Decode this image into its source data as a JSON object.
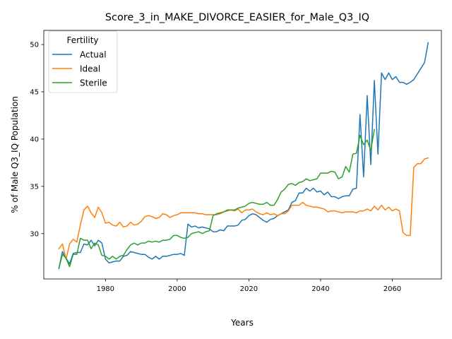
{
  "chart_data": {
    "type": "line",
    "title": "Score_3_in_MAKE_DIVORCE_EASIER_for_Male_Q3_IQ",
    "xlabel": "Years",
    "ylabel": "% of Male Q3_IQ Population",
    "xlim": [
      1962.8,
      2073.7
    ],
    "ylim": [
      25.2,
      51.5
    ],
    "xticks": [
      1980,
      2000,
      2020,
      2040,
      2060
    ],
    "yticks": [
      30,
      35,
      40,
      45,
      50
    ],
    "grid": false,
    "legend": {
      "title": "Fertility",
      "placement": "top-left"
    },
    "series": [
      {
        "name": "Actual",
        "color": "#1f77b4",
        "points": [
          [
            1967,
            26.3
          ],
          [
            1968,
            28.1
          ],
          [
            1969,
            27.4
          ],
          [
            1970,
            26.8
          ],
          [
            1971,
            27.9
          ],
          [
            1972,
            28.0
          ],
          [
            1973,
            28.0
          ],
          [
            1974,
            28.9
          ],
          [
            1975,
            28.8
          ],
          [
            1976,
            29.3
          ],
          [
            1977,
            28.7
          ],
          [
            1978,
            29.3
          ],
          [
            1979,
            29.0
          ],
          [
            1980,
            27.3
          ],
          [
            1981,
            26.9
          ],
          [
            1982,
            27.0
          ],
          [
            1983,
            27.1
          ],
          [
            1984,
            27.1
          ],
          [
            1985,
            27.6
          ],
          [
            1986,
            27.7
          ],
          [
            1987,
            28.1
          ],
          [
            1988,
            28.0
          ],
          [
            1989,
            27.9
          ],
          [
            1990,
            27.8
          ],
          [
            1991,
            27.8
          ],
          [
            1992,
            27.5
          ],
          [
            1993,
            27.3
          ],
          [
            1994,
            27.6
          ],
          [
            1995,
            27.3
          ],
          [
            1996,
            27.6
          ],
          [
            1997,
            27.6
          ],
          [
            1998,
            27.7
          ],
          [
            1999,
            27.8
          ],
          [
            2000,
            27.8
          ],
          [
            2001,
            27.9
          ],
          [
            2002,
            27.7
          ],
          [
            2003,
            31.0
          ],
          [
            2004,
            30.7
          ],
          [
            2005,
            30.8
          ],
          [
            2006,
            30.6
          ],
          [
            2007,
            30.7
          ],
          [
            2008,
            30.6
          ],
          [
            2009,
            30.5
          ],
          [
            2010,
            30.2
          ],
          [
            2011,
            30.2
          ],
          [
            2012,
            30.4
          ],
          [
            2013,
            30.3
          ],
          [
            2014,
            30.8
          ],
          [
            2015,
            30.8
          ],
          [
            2016,
            30.8
          ],
          [
            2017,
            30.9
          ],
          [
            2018,
            31.4
          ],
          [
            2019,
            31.5
          ],
          [
            2020,
            31.9
          ],
          [
            2021,
            32.1
          ],
          [
            2022,
            32.0
          ],
          [
            2023,
            31.7
          ],
          [
            2024,
            31.4
          ],
          [
            2025,
            31.2
          ],
          [
            2026,
            31.5
          ],
          [
            2027,
            31.6
          ],
          [
            2028,
            31.9
          ],
          [
            2029,
            32.1
          ],
          [
            2030,
            32.3
          ],
          [
            2031,
            32.5
          ],
          [
            2032,
            33.3
          ],
          [
            2033,
            33.5
          ],
          [
            2034,
            34.3
          ],
          [
            2035,
            34.3
          ],
          [
            2036,
            34.8
          ],
          [
            2037,
            34.5
          ],
          [
            2038,
            34.8
          ],
          [
            2039,
            34.4
          ],
          [
            2040,
            34.5
          ],
          [
            2041,
            34.1
          ],
          [
            2042,
            34.4
          ],
          [
            2043,
            33.9
          ],
          [
            2044,
            33.9
          ],
          [
            2045,
            33.7
          ],
          [
            2046,
            33.9
          ],
          [
            2047,
            34.0
          ],
          [
            2048,
            34.0
          ],
          [
            2049,
            34.7
          ],
          [
            2050,
            34.8
          ],
          [
            2051,
            42.6
          ],
          [
            2052,
            36.0
          ],
          [
            2053,
            44.6
          ],
          [
            2054,
            37.3
          ],
          [
            2055,
            46.2
          ],
          [
            2056,
            38.4
          ],
          [
            2057,
            47.0
          ],
          [
            2058,
            46.3
          ],
          [
            2059,
            47.0
          ],
          [
            2060,
            46.3
          ],
          [
            2061,
            46.6
          ],
          [
            2062,
            46.0
          ],
          [
            2063,
            46.0
          ],
          [
            2064,
            45.8
          ],
          [
            2065,
            46.0
          ],
          [
            2066,
            46.3
          ],
          [
            2067,
            46.9
          ],
          [
            2068,
            47.5
          ],
          [
            2069,
            48.1
          ],
          [
            2070,
            50.2
          ]
        ]
      },
      {
        "name": "Ideal",
        "color": "#ff7f0e",
        "points": [
          [
            1967,
            28.4
          ],
          [
            1968,
            28.9
          ],
          [
            1969,
            27.3
          ],
          [
            1970,
            28.9
          ],
          [
            1971,
            29.4
          ],
          [
            1972,
            29.1
          ],
          [
            1973,
            30.9
          ],
          [
            1974,
            32.5
          ],
          [
            1975,
            32.9
          ],
          [
            1976,
            32.2
          ],
          [
            1977,
            31.7
          ],
          [
            1978,
            32.8
          ],
          [
            1979,
            32.2
          ],
          [
            1980,
            31.1
          ],
          [
            1981,
            31.2
          ],
          [
            1982,
            30.9
          ],
          [
            1983,
            30.8
          ],
          [
            1984,
            31.2
          ],
          [
            1985,
            30.7
          ],
          [
            1986,
            30.8
          ],
          [
            1987,
            31.2
          ],
          [
            1988,
            30.9
          ],
          [
            1989,
            31.0
          ],
          [
            1990,
            31.3
          ],
          [
            1991,
            31.8
          ],
          [
            1992,
            31.9
          ],
          [
            1993,
            31.8
          ],
          [
            1994,
            31.6
          ],
          [
            1995,
            31.7
          ],
          [
            1996,
            32.1
          ],
          [
            1997,
            32.0
          ],
          [
            1998,
            31.7
          ],
          [
            1999,
            31.9
          ],
          [
            2000,
            32.0
          ],
          [
            2001,
            32.2
          ],
          [
            2002,
            32.2
          ],
          [
            2003,
            32.2
          ],
          [
            2004,
            32.2
          ],
          [
            2005,
            32.2
          ],
          [
            2006,
            32.1
          ],
          [
            2007,
            32.1
          ],
          [
            2008,
            32.0
          ],
          [
            2009,
            32.0
          ],
          [
            2010,
            32.0
          ],
          [
            2011,
            32.0
          ],
          [
            2012,
            32.1
          ],
          [
            2013,
            32.3
          ],
          [
            2014,
            32.4
          ],
          [
            2015,
            32.5
          ],
          [
            2016,
            32.4
          ],
          [
            2017,
            32.6
          ],
          [
            2018,
            32.2
          ],
          [
            2019,
            32.5
          ],
          [
            2020,
            32.5
          ],
          [
            2021,
            32.6
          ],
          [
            2022,
            32.3
          ],
          [
            2023,
            32.1
          ],
          [
            2024,
            32.0
          ],
          [
            2025,
            32.2
          ],
          [
            2026,
            32.0
          ],
          [
            2027,
            32.1
          ],
          [
            2028,
            31.9
          ],
          [
            2029,
            32.1
          ],
          [
            2030,
            32.1
          ],
          [
            2031,
            32.4
          ],
          [
            2032,
            33.0
          ],
          [
            2033,
            33.0
          ],
          [
            2034,
            33.0
          ],
          [
            2035,
            33.3
          ],
          [
            2036,
            33.0
          ],
          [
            2037,
            32.9
          ],
          [
            2038,
            32.8
          ],
          [
            2039,
            32.8
          ],
          [
            2040,
            32.7
          ],
          [
            2041,
            32.6
          ],
          [
            2042,
            32.3
          ],
          [
            2043,
            32.4
          ],
          [
            2044,
            32.4
          ],
          [
            2045,
            32.3
          ],
          [
            2046,
            32.2
          ],
          [
            2047,
            32.3
          ],
          [
            2048,
            32.3
          ],
          [
            2049,
            32.3
          ],
          [
            2050,
            32.2
          ],
          [
            2051,
            32.4
          ],
          [
            2052,
            32.4
          ],
          [
            2053,
            32.6
          ],
          [
            2054,
            32.4
          ],
          [
            2055,
            32.9
          ],
          [
            2056,
            32.5
          ],
          [
            2057,
            33.0
          ],
          [
            2058,
            32.5
          ],
          [
            2059,
            32.8
          ],
          [
            2060,
            32.4
          ],
          [
            2061,
            32.6
          ],
          [
            2062,
            32.4
          ],
          [
            2063,
            30.1
          ],
          [
            2064,
            29.8
          ],
          [
            2065,
            29.8
          ],
          [
            2066,
            37.0
          ],
          [
            2067,
            37.4
          ],
          [
            2068,
            37.4
          ],
          [
            2069,
            37.9
          ],
          [
            2070,
            38.0
          ]
        ]
      },
      {
        "name": "Sterile",
        "color": "#2ca02c",
        "points": [
          [
            1967,
            26.3
          ],
          [
            1968,
            27.8
          ],
          [
            1969,
            27.4
          ],
          [
            1970,
            26.5
          ],
          [
            1971,
            27.8
          ],
          [
            1972,
            27.8
          ],
          [
            1973,
            29.5
          ],
          [
            1974,
            29.3
          ],
          [
            1975,
            29.3
          ],
          [
            1976,
            28.4
          ],
          [
            1977,
            29.0
          ],
          [
            1978,
            28.8
          ],
          [
            1979,
            27.7
          ],
          [
            1980,
            27.6
          ],
          [
            1981,
            27.3
          ],
          [
            1982,
            27.6
          ],
          [
            1983,
            27.3
          ],
          [
            1984,
            27.6
          ],
          [
            1985,
            27.7
          ],
          [
            1986,
            28.3
          ],
          [
            1987,
            28.8
          ],
          [
            1988,
            29.0
          ],
          [
            1989,
            28.8
          ],
          [
            1990,
            29.0
          ],
          [
            1991,
            29.0
          ],
          [
            1992,
            29.2
          ],
          [
            1993,
            29.1
          ],
          [
            1994,
            29.2
          ],
          [
            1995,
            29.1
          ],
          [
            1996,
            29.3
          ],
          [
            1997,
            29.3
          ],
          [
            1998,
            29.4
          ],
          [
            1999,
            29.8
          ],
          [
            2000,
            29.8
          ],
          [
            2001,
            29.6
          ],
          [
            2002,
            29.5
          ],
          [
            2003,
            29.6
          ],
          [
            2004,
            30.0
          ],
          [
            2005,
            30.1
          ],
          [
            2006,
            30.2
          ],
          [
            2007,
            30.0
          ],
          [
            2008,
            30.2
          ],
          [
            2009,
            30.3
          ],
          [
            2010,
            31.9
          ],
          [
            2011,
            32.1
          ],
          [
            2012,
            32.2
          ],
          [
            2013,
            32.3
          ],
          [
            2014,
            32.5
          ],
          [
            2015,
            32.5
          ],
          [
            2016,
            32.5
          ],
          [
            2017,
            32.7
          ],
          [
            2018,
            32.8
          ],
          [
            2019,
            32.9
          ],
          [
            2020,
            33.2
          ],
          [
            2021,
            33.3
          ],
          [
            2022,
            33.2
          ],
          [
            2023,
            33.1
          ],
          [
            2024,
            33.1
          ],
          [
            2025,
            33.3
          ],
          [
            2026,
            33.0
          ],
          [
            2027,
            33.0
          ],
          [
            2028,
            33.6
          ],
          [
            2029,
            34.4
          ],
          [
            2030,
            34.7
          ],
          [
            2031,
            35.2
          ],
          [
            2032,
            35.3
          ],
          [
            2033,
            35.1
          ],
          [
            2034,
            35.4
          ],
          [
            2035,
            35.5
          ],
          [
            2036,
            35.8
          ],
          [
            2037,
            35.6
          ],
          [
            2038,
            35.7
          ],
          [
            2039,
            35.8
          ],
          [
            2040,
            36.4
          ],
          [
            2041,
            36.4
          ],
          [
            2042,
            36.4
          ],
          [
            2043,
            36.6
          ],
          [
            2044,
            36.5
          ],
          [
            2045,
            35.8
          ],
          [
            2046,
            36.0
          ],
          [
            2047,
            37.1
          ],
          [
            2048,
            36.5
          ],
          [
            2049,
            38.4
          ],
          [
            2050,
            38.5
          ],
          [
            2051,
            40.4
          ],
          [
            2052,
            39.4
          ],
          [
            2053,
            39.9
          ],
          [
            2054,
            38.8
          ],
          [
            2055,
            41.0
          ]
        ]
      }
    ]
  }
}
